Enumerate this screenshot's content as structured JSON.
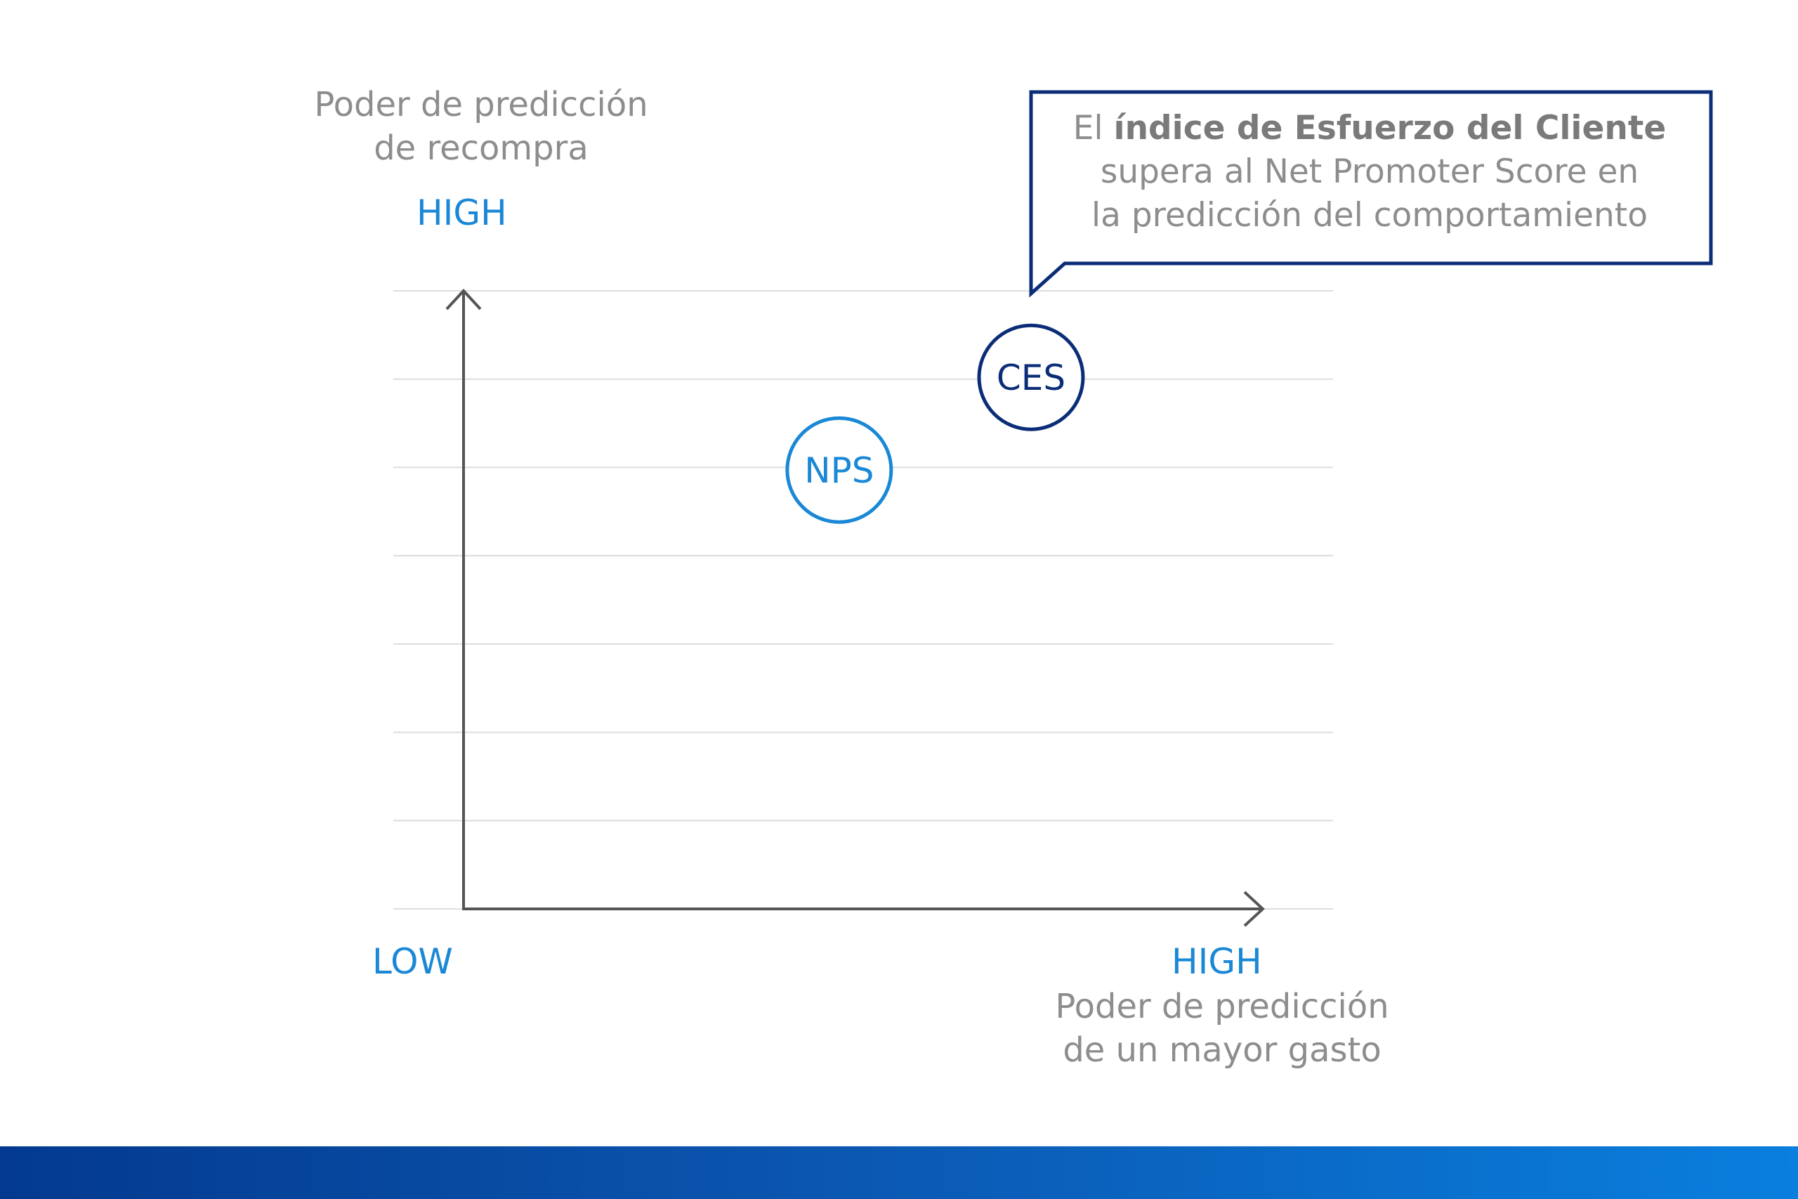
{
  "chart_data": {
    "type": "scatter",
    "ylabel": "Poder de predicción de recompra",
    "ylabel_lines": [
      "Poder de predicción",
      "de recompra"
    ],
    "xlabel": "Poder de predicción de un mayor gasto",
    "xlabel_lines": [
      "Poder de predicción",
      "de un mayor gasto"
    ],
    "y_high_label": "HIGH",
    "x_low_label": "LOW",
    "x_high_label": "HIGH",
    "xlim": [
      0,
      1
    ],
    "ylim": [
      0,
      1
    ],
    "grid": true,
    "grid_lines": 8,
    "points": [
      {
        "label": "NPS",
        "x": 0.47,
        "y": 0.71,
        "color": "#1a88d6"
      },
      {
        "label": "CES",
        "x": 0.71,
        "y": 0.86,
        "color": "#0b2d78"
      }
    ],
    "annotation": {
      "target": "CES",
      "line1_prefix": "El ",
      "line1_bold": "índice de Esfuerzo del Cliente",
      "line2": "supera al Net Promoter Score en",
      "line3": "la predicción del comportamiento"
    }
  },
  "colors": {
    "axis": "#555555",
    "grid": "#dddddd",
    "callout_border": "#0b2d78",
    "accent_blue": "#1a88d6",
    "navy": "#0b2d78"
  }
}
